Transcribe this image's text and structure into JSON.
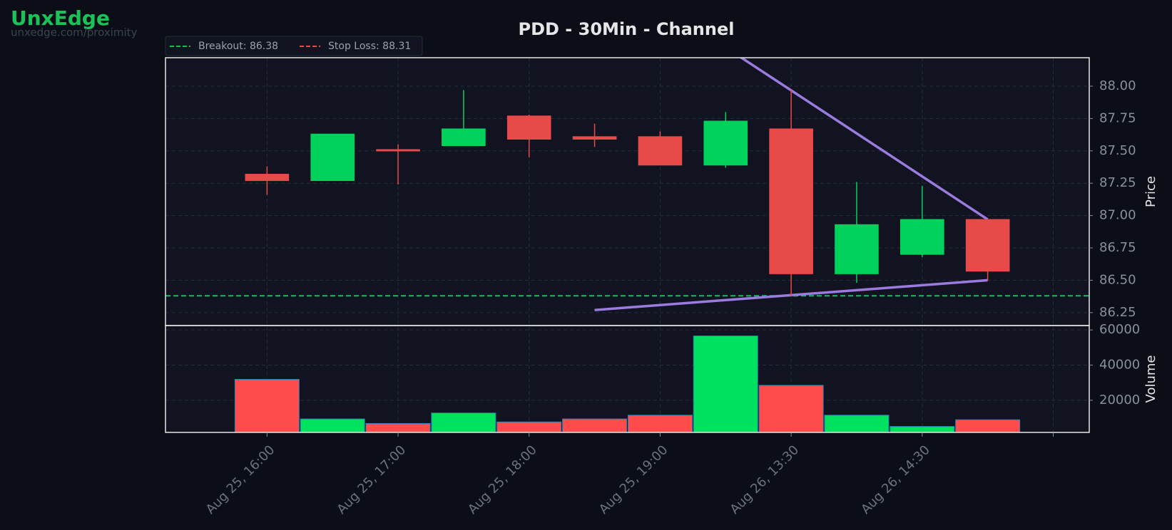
{
  "brand": {
    "name": "UnxEdge",
    "url": "unxedge.com/proximity"
  },
  "chart_data": {
    "type": "candlestick",
    "title": "PDD - 30Min - Channel",
    "categories": [
      "Aug 25, 16:00",
      null,
      "Aug 25, 17:00",
      null,
      "Aug 25, 18:00",
      null,
      "Aug 25, 19:00",
      null,
      "Aug 26, 13:30",
      null,
      "Aug 26, 14:30",
      null
    ],
    "open": [
      87.32,
      87.27,
      87.51,
      87.54,
      87.77,
      87.61,
      87.61,
      87.39,
      87.67,
      86.55,
      86.7,
      86.97
    ],
    "high": [
      87.38,
      87.63,
      87.55,
      87.97,
      87.78,
      87.71,
      87.65,
      87.8,
      87.97,
      87.26,
      87.23,
      86.97
    ],
    "low": [
      87.16,
      87.27,
      87.24,
      87.54,
      87.45,
      87.53,
      87.39,
      87.37,
      86.38,
      86.48,
      86.68,
      86.5
    ],
    "close": [
      87.27,
      87.63,
      87.5,
      87.67,
      87.59,
      87.59,
      87.39,
      87.73,
      86.55,
      86.93,
      86.97,
      86.57
    ],
    "up_color": "#00d25b",
    "down_color": "#e84a4a",
    "xlim": [
      -1.55,
      12.55
    ],
    "ylim": [
      86.15,
      88.22
    ],
    "yticks": [
      86.25,
      {
        "value": 86.5,
        "label": "86.50"
      },
      86.75,
      {
        "value": 87.0,
        "label": "87.00"
      },
      87.25,
      {
        "value": 87.5,
        "label": "87.50"
      },
      87.75,
      {
        "value": 88.0,
        "label": "88.00"
      }
    ],
    "ylabel": "Price",
    "grid": true,
    "lines": [
      {
        "label": "Breakout: 86.38",
        "value": 86.38,
        "color": "#00c853"
      },
      {
        "label": "Stop Loss: 88.31",
        "value": 88.31,
        "color": "#e84a4a"
      }
    ],
    "trendlines": [
      {
        "x": [
          7,
          11
        ],
        "values": [
          88.3,
          86.97
        ],
        "color": "#9b7be0"
      },
      {
        "x": [
          5,
          11
        ],
        "values": [
          86.27,
          86.5
        ],
        "color": "#9b7be0"
      }
    ],
    "volume": {
      "values": [
        31900,
        9360,
        6800,
        12760,
        7660,
        9360,
        11500,
        56600,
        28500,
        11500,
        5100,
        8900
      ],
      "ylim": [
        1700,
        62500
      ],
      "yticks": [
        20000,
        40000,
        60000
      ],
      "ylabel": "Volume"
    }
  }
}
